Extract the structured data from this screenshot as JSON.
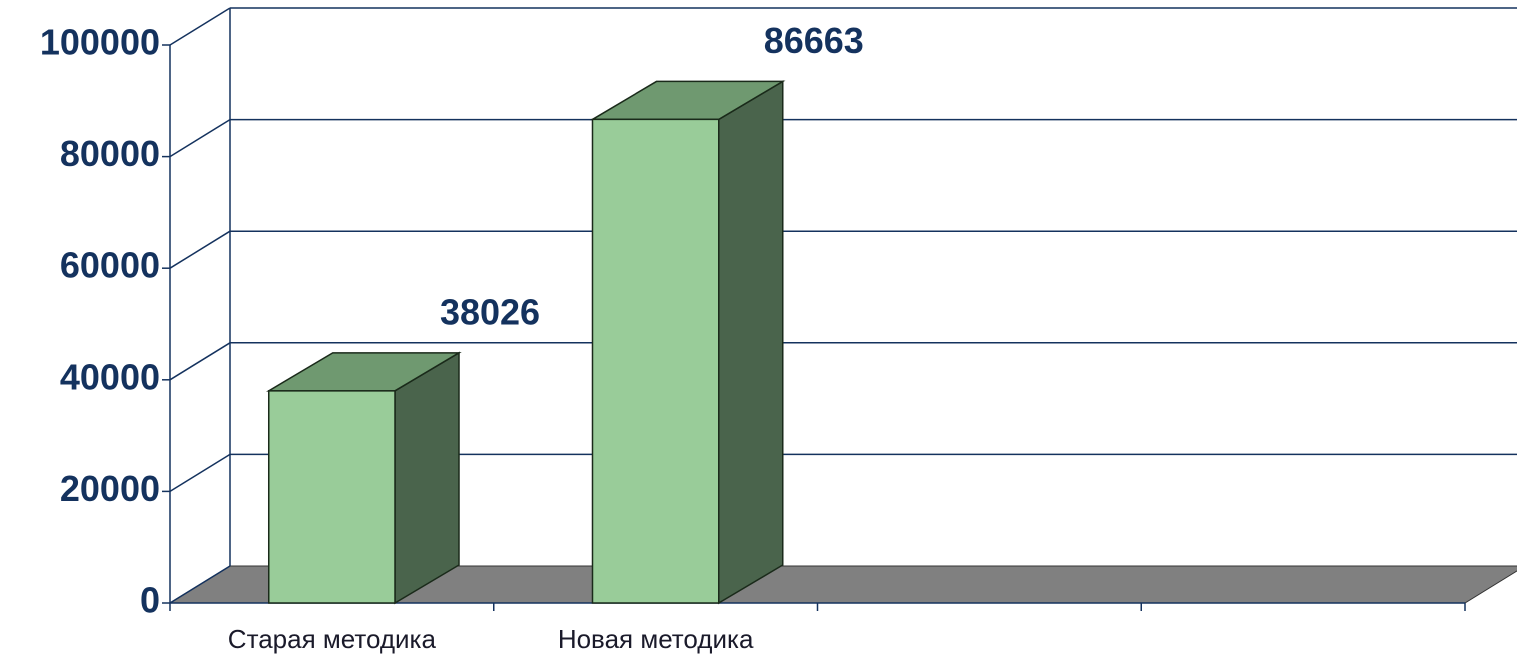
{
  "chart_data": {
    "type": "bar3d",
    "categories": [
      "Старая методика",
      "Новая методика",
      null,
      null
    ],
    "values": [
      38026,
      86663,
      null,
      null
    ],
    "colors": {
      "front": "#99cc99",
      "side": "#4a644c",
      "top": "#6f9970",
      "floor": "#808080"
    },
    "ylim": [
      0,
      100000
    ],
    "yticks": [
      0,
      20000,
      40000,
      60000,
      80000,
      100000
    ],
    "grid": true
  }
}
